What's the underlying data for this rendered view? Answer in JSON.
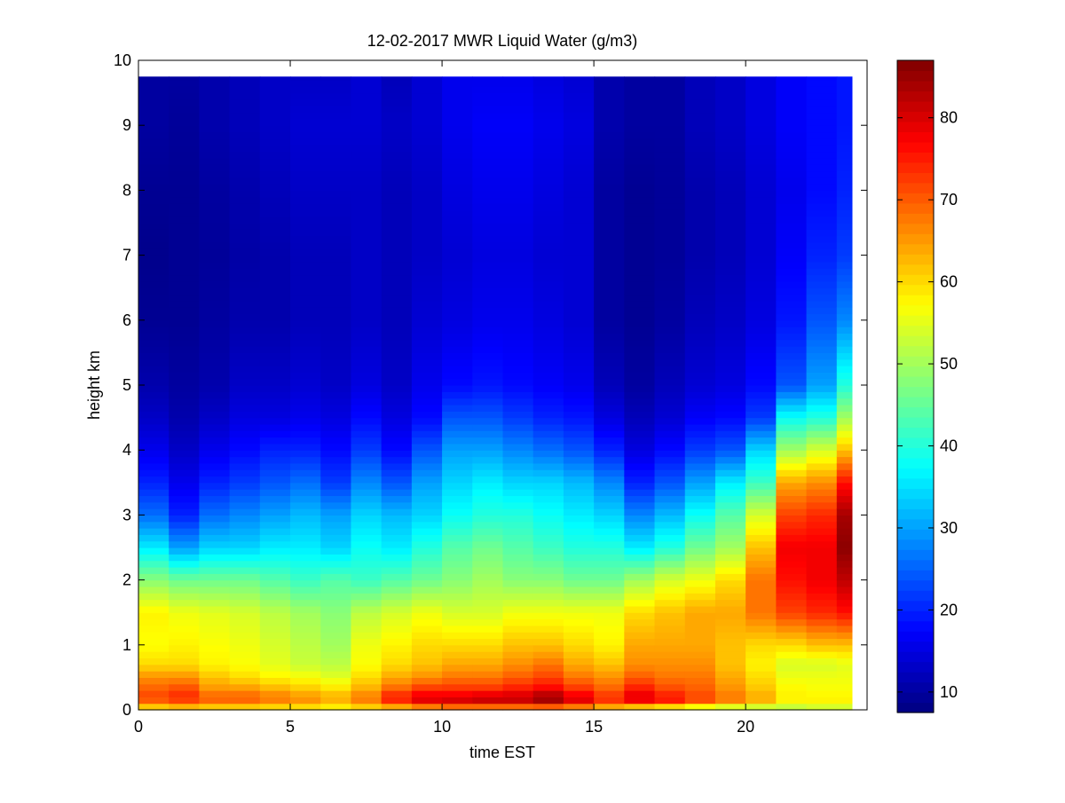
{
  "chart_data": {
    "type": "heatmap",
    "title": "12-02-2017 MWR Liquid Water (g/m3)",
    "xlabel": "time EST",
    "ylabel": "height km",
    "xlim": [
      0,
      24
    ],
    "ylim": [
      0,
      10
    ],
    "x_ticks": [
      0,
      5,
      10,
      15,
      20
    ],
    "y_ticks": [
      0,
      1,
      2,
      3,
      4,
      5,
      6,
      7,
      8,
      9,
      10
    ],
    "colorbar": {
      "min": 7.5,
      "max": 87,
      "ticks": [
        10,
        20,
        30,
        40,
        50,
        60,
        70,
        80
      ],
      "colormap": "jet"
    },
    "grid": false,
    "time_step_hours": 1,
    "time_start": 0,
    "time_end": 23.5,
    "height_top_km": 9.75,
    "profile_heights_km": [
      0,
      0.1,
      0.2,
      0.3,
      0.5,
      0.7,
      1.0,
      1.5,
      2.0,
      2.5,
      3.0,
      3.5,
      4.0,
      4.5,
      5.0,
      6.0,
      7.0,
      8.0,
      9.0,
      9.75
    ],
    "profiles": [
      [
        55,
        68,
        72,
        70,
        66,
        60,
        57,
        58,
        48,
        36,
        26,
        20,
        16,
        13,
        11,
        9,
        8.5,
        9,
        10,
        10
      ],
      [
        56,
        70,
        74,
        72,
        66,
        60,
        58,
        56,
        46,
        30,
        20,
        16,
        13,
        11,
        10,
        9,
        9,
        9,
        9.5,
        10
      ],
      [
        55,
        68,
        70,
        66,
        62,
        58,
        57,
        55,
        46,
        34,
        26,
        20,
        16,
        13,
        11,
        10,
        9.5,
        10,
        11,
        11
      ],
      [
        55,
        68,
        70,
        66,
        60,
        57,
        56,
        54,
        46,
        34,
        28,
        22,
        18,
        15,
        13,
        11,
        10.5,
        11,
        12,
        12
      ],
      [
        55,
        66,
        68,
        64,
        58,
        55,
        54,
        52,
        44,
        36,
        30,
        24,
        20,
        15,
        13,
        11,
        11,
        12,
        13,
        13
      ],
      [
        55,
        65,
        66,
        62,
        57,
        53,
        52,
        50,
        42,
        36,
        32,
        26,
        20,
        16,
        14,
        12,
        12,
        13,
        14,
        13
      ],
      [
        55,
        62,
        64,
        60,
        55,
        52,
        50,
        48,
        44,
        34,
        30,
        22,
        18,
        15,
        13,
        12,
        12,
        13,
        14,
        13
      ],
      [
        56,
        66,
        68,
        64,
        60,
        57,
        56,
        52,
        42,
        38,
        34,
        28,
        22,
        18,
        15,
        13,
        13,
        13,
        14,
        14
      ],
      [
        56,
        72,
        76,
        70,
        64,
        60,
        58,
        54,
        44,
        36,
        32,
        24,
        18,
        15,
        13,
        12,
        12,
        12,
        13,
        12
      ],
      [
        57,
        78,
        80,
        74,
        66,
        62,
        60,
        56,
        46,
        40,
        34,
        30,
        24,
        18,
        16,
        14,
        13,
        13,
        14,
        14
      ],
      [
        58,
        80,
        80,
        74,
        68,
        64,
        60,
        54,
        48,
        44,
        38,
        34,
        30,
        24,
        18,
        15,
        14,
        15,
        16,
        16
      ],
      [
        58,
        80,
        82,
        74,
        68,
        64,
        60,
        54,
        50,
        46,
        40,
        36,
        30,
        24,
        19,
        16,
        15,
        16,
        17,
        16
      ],
      [
        58,
        80,
        82,
        76,
        70,
        66,
        62,
        56,
        48,
        44,
        40,
        34,
        28,
        22,
        18,
        16,
        15,
        16,
        17,
        16
      ],
      [
        58,
        82,
        86,
        78,
        72,
        68,
        62,
        56,
        48,
        42,
        38,
        34,
        26,
        20,
        17,
        15,
        14,
        15,
        16,
        15
      ],
      [
        57,
        78,
        80,
        74,
        68,
        64,
        60,
        56,
        46,
        40,
        36,
        32,
        24,
        19,
        16,
        14,
        14,
        14,
        15,
        14
      ],
      [
        56,
        72,
        74,
        70,
        66,
        62,
        58,
        56,
        46,
        40,
        34,
        28,
        20,
        15,
        12,
        10,
        10,
        10,
        11,
        11
      ],
      [
        48,
        76,
        80,
        76,
        70,
        66,
        64,
        60,
        50,
        36,
        28,
        20,
        15,
        12,
        10,
        9,
        9,
        9,
        10,
        10
      ],
      [
        46,
        74,
        76,
        72,
        68,
        66,
        64,
        62,
        54,
        40,
        32,
        24,
        18,
        14,
        12,
        10,
        9.5,
        9.5,
        10,
        10
      ],
      [
        44,
        70,
        72,
        70,
        68,
        66,
        64,
        64,
        56,
        46,
        38,
        30,
        22,
        17,
        14,
        12,
        11,
        11,
        12,
        12
      ],
      [
        44,
        66,
        68,
        66,
        64,
        62,
        62,
        64,
        60,
        50,
        44,
        36,
        24,
        18,
        15,
        13,
        12,
        12,
        13,
        13
      ],
      [
        46,
        62,
        64,
        62,
        60,
        58,
        60,
        68,
        68,
        62,
        54,
        42,
        34,
        22,
        18,
        15,
        14,
        14,
        15,
        15
      ],
      [
        48,
        58,
        58,
        58,
        56,
        54,
        60,
        72,
        76,
        78,
        72,
        64,
        50,
        38,
        24,
        19,
        17,
        16,
        17,
        17
      ],
      [
        50,
        58,
        58,
        57,
        56,
        54,
        62,
        74,
        78,
        78,
        74,
        66,
        54,
        40,
        30,
        24,
        20,
        18,
        18,
        18
      ],
      [
        50,
        58,
        58,
        57,
        56,
        55,
        62,
        76,
        82,
        86,
        84,
        76,
        62,
        50,
        40,
        28,
        22,
        20,
        19,
        19
      ]
    ]
  }
}
